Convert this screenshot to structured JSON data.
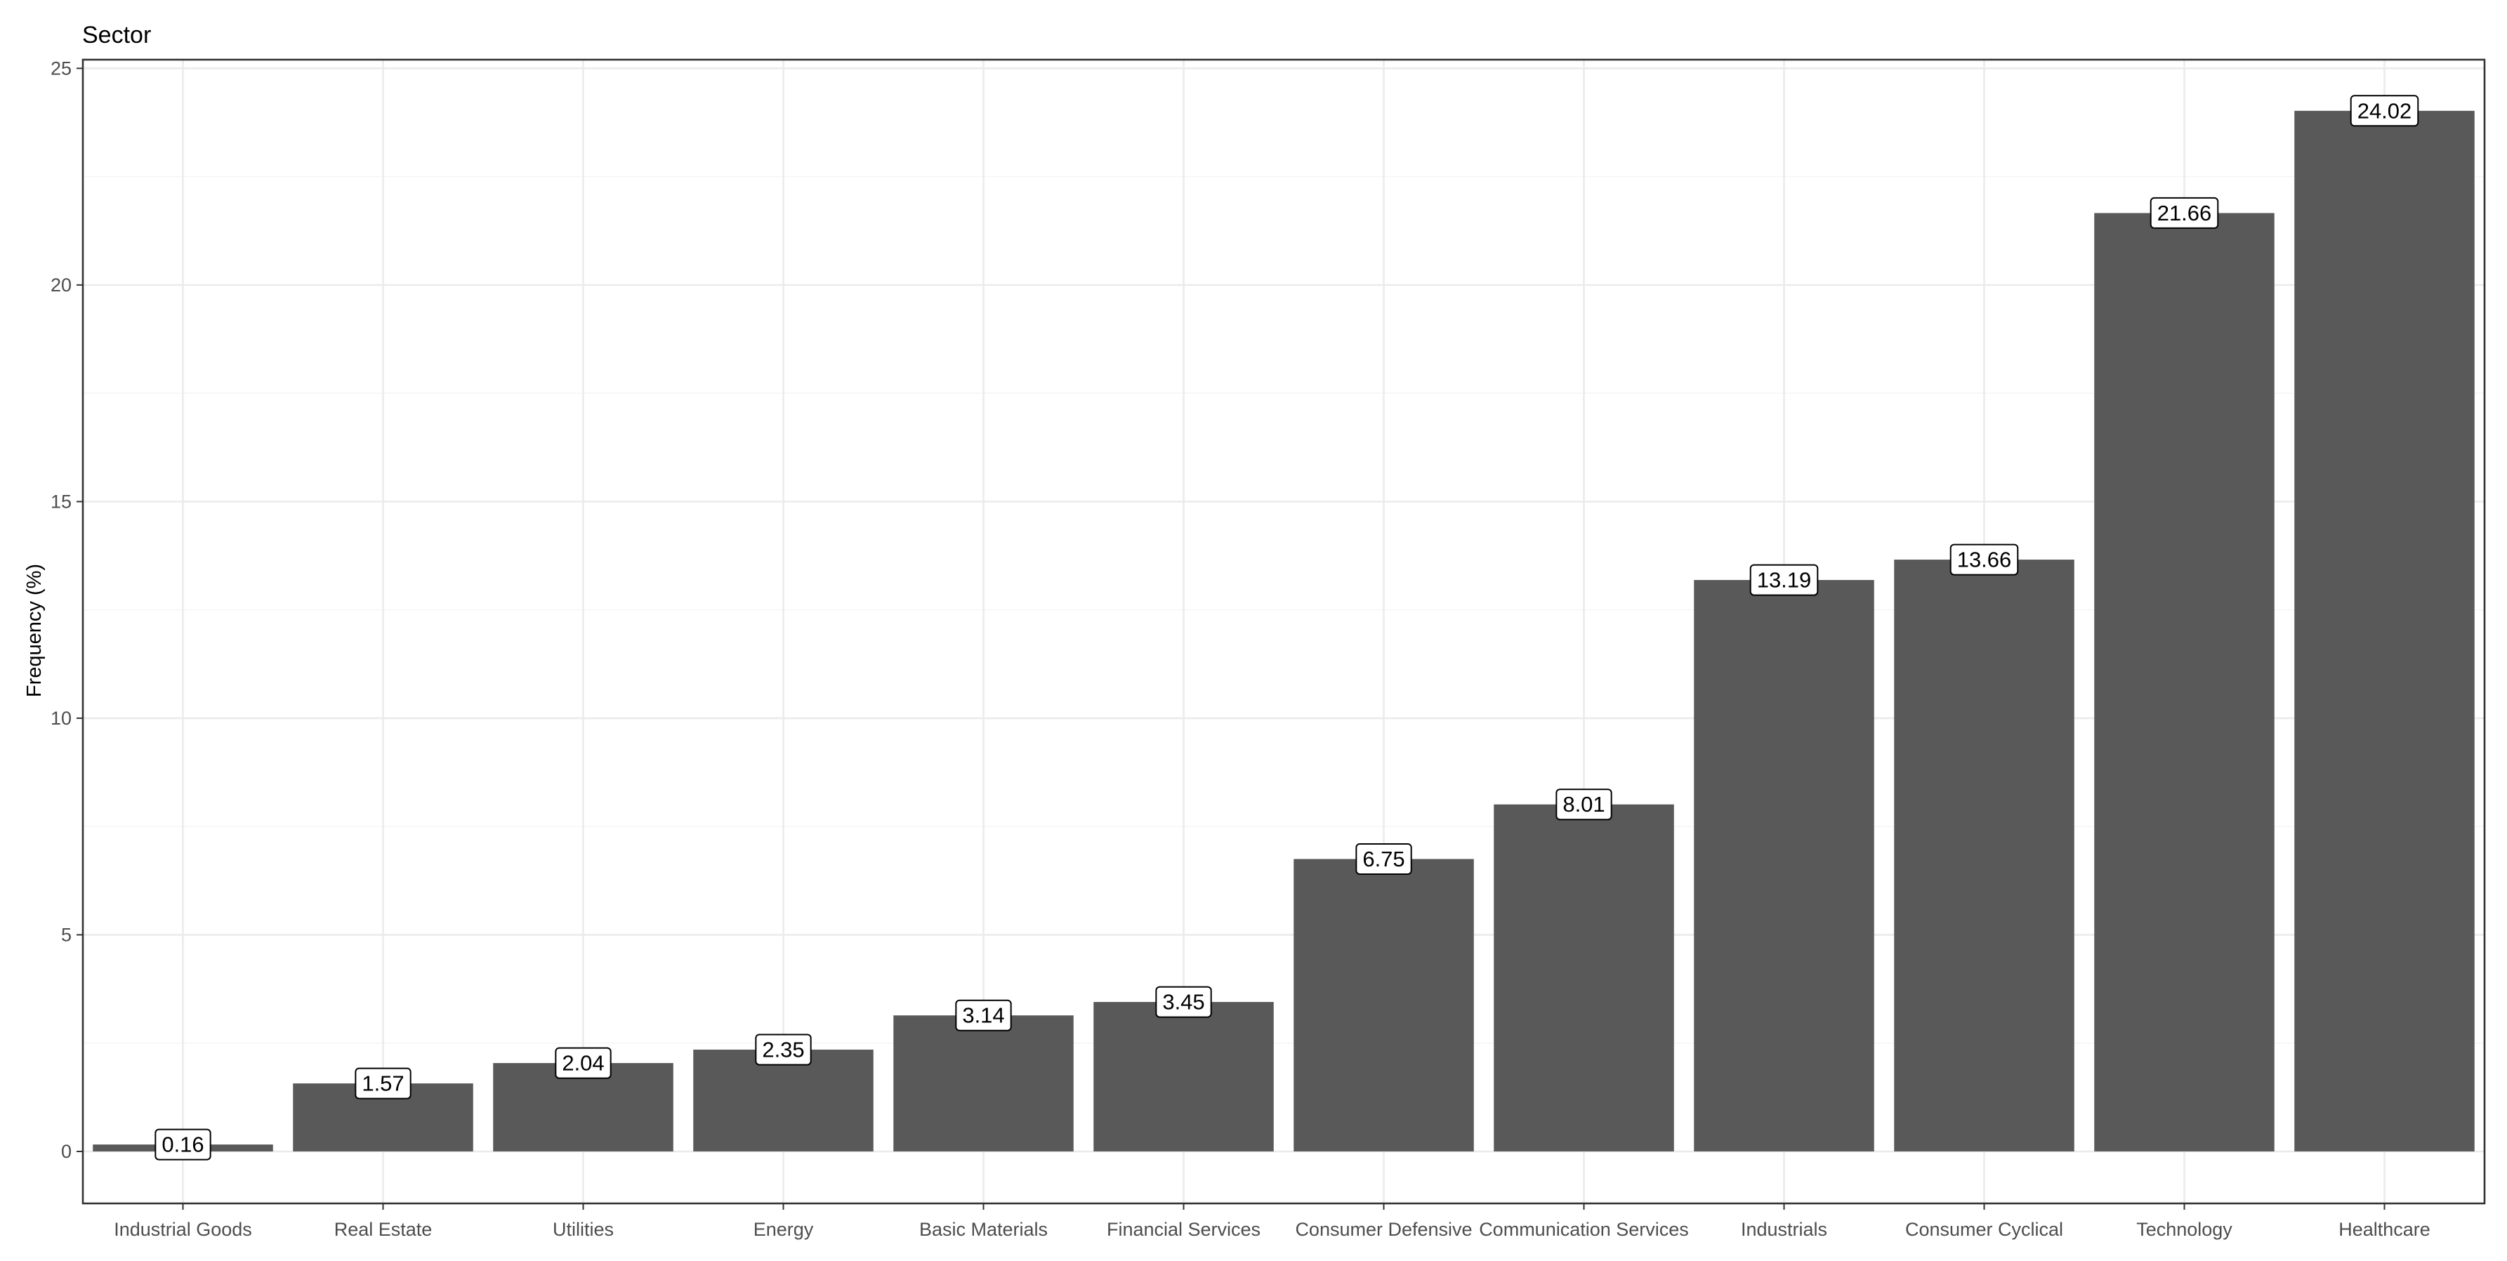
{
  "chart_data": {
    "type": "bar",
    "title": "Sector",
    "xlabel": "",
    "ylabel": "Frequency (%)",
    "categories": [
      "Industrial Goods",
      "Real Estate",
      "Utilities",
      "Energy",
      "Basic Materials",
      "Financial Services",
      "Consumer Defensive",
      "Communication Services",
      "Industrials",
      "Consumer Cyclical",
      "Technology",
      "Healthcare"
    ],
    "values": [
      0.16,
      1.57,
      2.04,
      2.35,
      3.14,
      3.45,
      6.75,
      8.01,
      13.19,
      13.66,
      21.66,
      24.02
    ],
    "data_labels": [
      "0.16",
      "1.57",
      "2.04",
      "2.35",
      "3.14",
      "3.45",
      "6.75",
      "8.01",
      "13.19",
      "13.66",
      "21.66",
      "24.02"
    ],
    "yticks": [
      0,
      5,
      10,
      15,
      20,
      25
    ],
    "ytick_labels": [
      "0",
      "5",
      "10",
      "15",
      "20",
      "25"
    ],
    "ylim": [
      -1.2,
      25.2
    ],
    "grid": true,
    "legend": "none",
    "bar_color": "#595959",
    "grid_color": "#ebebeb",
    "panel_border_color": "#333333"
  }
}
